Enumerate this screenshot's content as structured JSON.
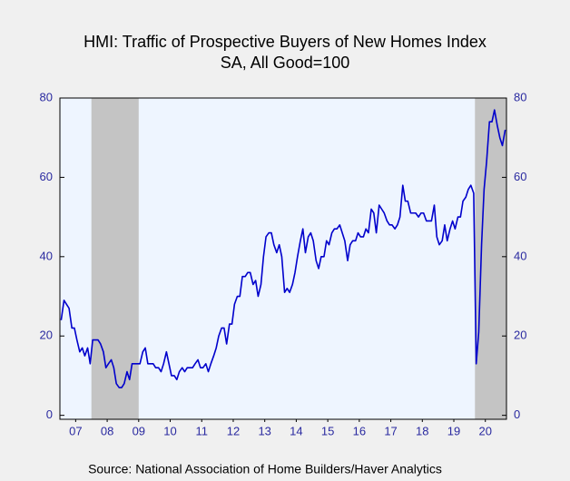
{
  "chart_data": {
    "type": "line",
    "title": "HMI: Traffic of Prospective Buyers of New Homes Index",
    "subtitle": "SA, All Good=100",
    "source": "Source:  National Association of Home Builders/Haver Analytics",
    "xlim": [
      2007,
      2021.17
    ],
    "xticks": [
      {
        "value": 2007.5,
        "label": "07"
      },
      {
        "value": 2008.5,
        "label": "08"
      },
      {
        "value": 2009.5,
        "label": "09"
      },
      {
        "value": 2010.5,
        "label": "10"
      },
      {
        "value": 2011.5,
        "label": "11"
      },
      {
        "value": 2012.5,
        "label": "12"
      },
      {
        "value": 2013.5,
        "label": "13"
      },
      {
        "value": 2014.5,
        "label": "14"
      },
      {
        "value": 2015.5,
        "label": "15"
      },
      {
        "value": 2016.5,
        "label": "16"
      },
      {
        "value": 2017.5,
        "label": "17"
      },
      {
        "value": 2018.5,
        "label": "18"
      },
      {
        "value": 2019.5,
        "label": "19"
      },
      {
        "value": 2020.5,
        "label": "20"
      }
    ],
    "ylim": [
      -1,
      80
    ],
    "yticks": [
      0,
      20,
      40,
      60,
      80
    ],
    "y2lim": [
      -1,
      80
    ],
    "y2ticks": [
      0,
      20,
      40,
      60,
      80
    ],
    "shaded_periods": [
      [
        2008,
        2009.5
      ],
      [
        2020.17,
        2021.17
      ]
    ],
    "shade_color": "#c4c4c4",
    "x": [
      2007.04,
      2007.13,
      2007.21,
      2007.29,
      2007.38,
      2007.46,
      2007.54,
      2007.63,
      2007.71,
      2007.79,
      2007.88,
      2007.96,
      2008.04,
      2008.13,
      2008.21,
      2008.29,
      2008.38,
      2008.46,
      2008.54,
      2008.63,
      2008.71,
      2008.79,
      2008.88,
      2008.96,
      2009.04,
      2009.13,
      2009.21,
      2009.29,
      2009.38,
      2009.46,
      2009.54,
      2009.63,
      2009.71,
      2009.79,
      2009.88,
      2009.96,
      2010.04,
      2010.13,
      2010.21,
      2010.29,
      2010.38,
      2010.46,
      2010.54,
      2010.63,
      2010.71,
      2010.79,
      2010.88,
      2010.96,
      2011.04,
      2011.13,
      2011.21,
      2011.29,
      2011.38,
      2011.46,
      2011.54,
      2011.63,
      2011.71,
      2011.79,
      2011.88,
      2011.96,
      2012.04,
      2012.13,
      2012.21,
      2012.29,
      2012.38,
      2012.46,
      2012.54,
      2012.63,
      2012.71,
      2012.79,
      2012.88,
      2012.96,
      2013.04,
      2013.13,
      2013.21,
      2013.29,
      2013.38,
      2013.46,
      2013.54,
      2013.63,
      2013.71,
      2013.79,
      2013.88,
      2013.96,
      2014.04,
      2014.13,
      2014.21,
      2014.29,
      2014.38,
      2014.46,
      2014.54,
      2014.63,
      2014.71,
      2014.79,
      2014.88,
      2014.96,
      2015.04,
      2015.13,
      2015.21,
      2015.29,
      2015.38,
      2015.46,
      2015.54,
      2015.63,
      2015.71,
      2015.79,
      2015.88,
      2015.96,
      2016.04,
      2016.13,
      2016.21,
      2016.29,
      2016.38,
      2016.46,
      2016.54,
      2016.63,
      2016.71,
      2016.79,
      2016.88,
      2016.96,
      2017.04,
      2017.13,
      2017.21,
      2017.29,
      2017.38,
      2017.46,
      2017.54,
      2017.63,
      2017.71,
      2017.79,
      2017.88,
      2017.96,
      2018.04,
      2018.13,
      2018.21,
      2018.29,
      2018.38,
      2018.46,
      2018.54,
      2018.63,
      2018.71,
      2018.79,
      2018.88,
      2018.96,
      2019.04,
      2019.13,
      2019.21,
      2019.29,
      2019.38,
      2019.46,
      2019.54,
      2019.63,
      2019.71,
      2019.79,
      2019.88,
      2019.96,
      2020.04,
      2020.13,
      2020.21,
      2020.29,
      2020.38,
      2020.46,
      2020.54,
      2020.63,
      2020.71,
      2020.79,
      2020.88,
      2020.96,
      2021.04,
      2021.13
    ],
    "series": [
      {
        "name": "HMI: Traffic of Prospective Buyers",
        "color": "#0000cc",
        "values": [
          24,
          29,
          28,
          27,
          22,
          22,
          19,
          16,
          17,
          15,
          17,
          13,
          19,
          19,
          19,
          18,
          16,
          12,
          13,
          14,
          12,
          8,
          7,
          7,
          8,
          11,
          9,
          13,
          13,
          13,
          13,
          16,
          17,
          13,
          13,
          13,
          12,
          12,
          11,
          13,
          16,
          13,
          10,
          10,
          9,
          11,
          12,
          11,
          12,
          12,
          12,
          13,
          14,
          12,
          12,
          13,
          11,
          13,
          15,
          17,
          20,
          22,
          22,
          18,
          23,
          23,
          28,
          30,
          30,
          35,
          35,
          36,
          36,
          33,
          34,
          30,
          33,
          40,
          45,
          46,
          46,
          43,
          41,
          43,
          40,
          31,
          32,
          31,
          33,
          36,
          40,
          44,
          47,
          41,
          45,
          46,
          44,
          39,
          37,
          40,
          40,
          44,
          43,
          46,
          47,
          47,
          48,
          46,
          44,
          39,
          43,
          44,
          44,
          46,
          45,
          45,
          47,
          46,
          52,
          51,
          46,
          53,
          52,
          51,
          49,
          48,
          48,
          47,
          48,
          50,
          58,
          54,
          54,
          51,
          51,
          51,
          50,
          51,
          51,
          49,
          49,
          49,
          53,
          45,
          43,
          44,
          48,
          44,
          47,
          49,
          47,
          50,
          50,
          54,
          55,
          57,
          58,
          56,
          13,
          21,
          43,
          57,
          64,
          74,
          74,
          77,
          73,
          70,
          68,
          72
        ]
      }
    ]
  }
}
